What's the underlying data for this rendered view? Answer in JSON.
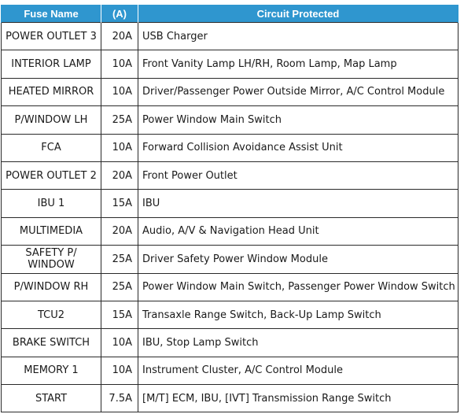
{
  "table": {
    "headers": {
      "fuse_name": "Fuse Name",
      "amperage": "(A)",
      "circuit": "Circuit Protected"
    },
    "rows": [
      {
        "name": "POWER OUTLET 3",
        "amps": "20A",
        "circuit": "USB Charger"
      },
      {
        "name": "INTERIOR LAMP",
        "amps": "10A",
        "circuit": "Front Vanity Lamp LH/RH, Room Lamp, Map Lamp"
      },
      {
        "name": "HEATED MIRROR",
        "amps": "10A",
        "circuit": "Driver/Passenger Power Outside Mirror, A/C Control Module"
      },
      {
        "name": "P/WINDOW LH",
        "amps": "25A",
        "circuit": "Power Window Main Switch"
      },
      {
        "name": "FCA",
        "amps": "10A",
        "circuit": "Forward Collision Avoidance Assist Unit"
      },
      {
        "name": "POWER OUTLET 2",
        "amps": "20A",
        "circuit": "Front Power Outlet"
      },
      {
        "name": "IBU 1",
        "amps": "15A",
        "circuit": "IBU"
      },
      {
        "name": "MULTIMEDIA",
        "amps": "20A",
        "circuit": "Audio, A/V & Navigation Head Unit"
      },
      {
        "name": "SAFETY P/ WINDOW",
        "amps": "25A",
        "circuit": "Driver Safety Power Window Module"
      },
      {
        "name": "P/WINDOW RH",
        "amps": "25A",
        "circuit": "Power Window Main Switch, Passenger Power Window Switch"
      },
      {
        "name": "TCU2",
        "amps": "15A",
        "circuit": "Transaxle Range Switch, Back-Up Lamp Switch"
      },
      {
        "name": "BRAKE SWITCH",
        "amps": "10A",
        "circuit": "IBU, Stop Lamp Switch"
      },
      {
        "name": "MEMORY 1",
        "amps": "10A",
        "circuit": "Instrument Cluster, A/C Control Module"
      },
      {
        "name": "START",
        "amps": "7.5A",
        "circuit": "[M/T] ECM, IBU, [IVT] Transmission Range Switch"
      }
    ]
  },
  "colors": {
    "header_background": "#2f96cf",
    "header_text": "#ffffff",
    "grid_line": "#2a2a2a"
  }
}
